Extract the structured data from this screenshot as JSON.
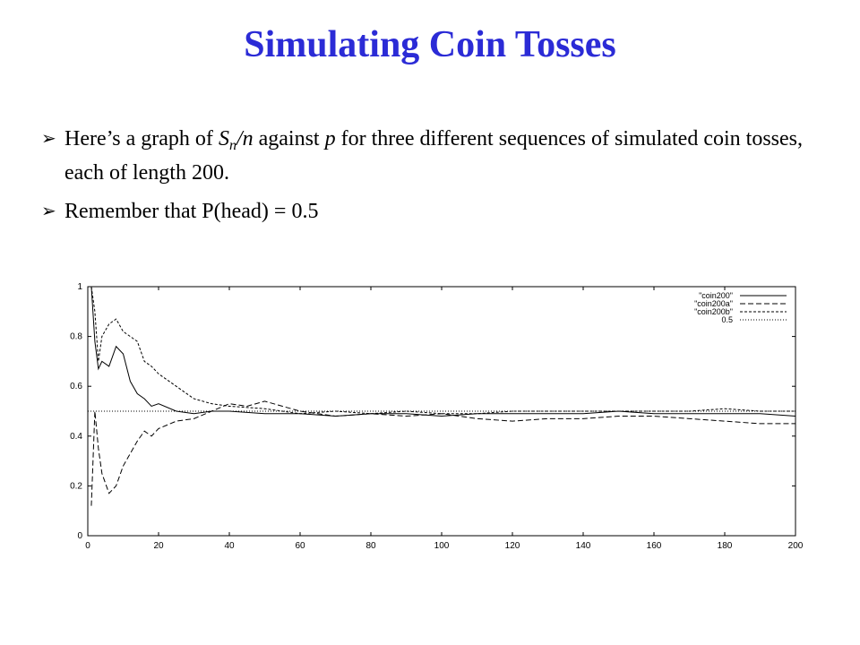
{
  "slide": {
    "title": "Simulating Coin Tosses",
    "bullet1": {
      "pre": "Here’s a graph of ",
      "S": "S",
      "sub": "n",
      "mid": "/n",
      "mid2": " against ",
      "p": "p",
      "post": " for three different sequences of simulated coin tosses, each of length 200."
    },
    "bullet2": "Remember that P(head) = 0.5",
    "arrow_icon": "arrow-bullet-icon"
  },
  "chart_data": {
    "type": "line",
    "xlim": [
      0,
      200
    ],
    "ylim": [
      0,
      1
    ],
    "xticks": [
      "0",
      "20",
      "40",
      "60",
      "80",
      "100",
      "120",
      "140",
      "160",
      "180",
      "200"
    ],
    "yticks": [
      "0",
      "0.2",
      "0.4",
      "0.6",
      "0.8",
      "1"
    ],
    "legend_position": "top-right",
    "grid": false,
    "series": [
      {
        "name": "\"coin200\"",
        "dash": "solid",
        "x": [
          1,
          2,
          3,
          4,
          6,
          8,
          10,
          12,
          14,
          16,
          18,
          20,
          25,
          30,
          35,
          40,
          50,
          60,
          70,
          80,
          90,
          100,
          110,
          120,
          130,
          140,
          150,
          160,
          170,
          180,
          190,
          200
        ],
        "y": [
          1.0,
          0.78,
          0.67,
          0.7,
          0.68,
          0.76,
          0.73,
          0.62,
          0.57,
          0.55,
          0.52,
          0.53,
          0.5,
          0.49,
          0.5,
          0.5,
          0.49,
          0.49,
          0.48,
          0.49,
          0.49,
          0.48,
          0.49,
          0.49,
          0.49,
          0.49,
          0.5,
          0.49,
          0.49,
          0.49,
          0.49,
          0.48
        ]
      },
      {
        "name": "\"coin200a\"",
        "dash": "longdash",
        "x": [
          1,
          2,
          3,
          4,
          6,
          8,
          10,
          12,
          14,
          16,
          18,
          20,
          25,
          30,
          35,
          40,
          45,
          50,
          60,
          70,
          80,
          90,
          100,
          110,
          120,
          130,
          140,
          150,
          160,
          170,
          180,
          190,
          200
        ],
        "y": [
          0.12,
          0.5,
          0.35,
          0.25,
          0.17,
          0.2,
          0.28,
          0.33,
          0.38,
          0.42,
          0.4,
          0.43,
          0.46,
          0.47,
          0.5,
          0.53,
          0.52,
          0.54,
          0.5,
          0.48,
          0.49,
          0.48,
          0.49,
          0.47,
          0.46,
          0.47,
          0.47,
          0.48,
          0.48,
          0.47,
          0.46,
          0.45,
          0.45
        ]
      },
      {
        "name": "\"coin200b\"",
        "dash": "shortdash",
        "x": [
          1,
          2,
          3,
          4,
          6,
          8,
          10,
          12,
          14,
          16,
          18,
          20,
          25,
          30,
          35,
          40,
          50,
          60,
          70,
          80,
          90,
          100,
          110,
          120,
          130,
          140,
          150,
          160,
          170,
          180,
          190,
          200
        ],
        "y": [
          1.0,
          0.9,
          0.7,
          0.8,
          0.85,
          0.87,
          0.82,
          0.8,
          0.78,
          0.7,
          0.68,
          0.65,
          0.6,
          0.55,
          0.53,
          0.52,
          0.51,
          0.49,
          0.5,
          0.49,
          0.5,
          0.49,
          0.49,
          0.5,
          0.5,
          0.5,
          0.5,
          0.5,
          0.5,
          0.51,
          0.5,
          0.5
        ]
      },
      {
        "name": "0.5",
        "dash": "dotted",
        "x": [
          0,
          200
        ],
        "y": [
          0.5,
          0.5
        ]
      }
    ]
  }
}
